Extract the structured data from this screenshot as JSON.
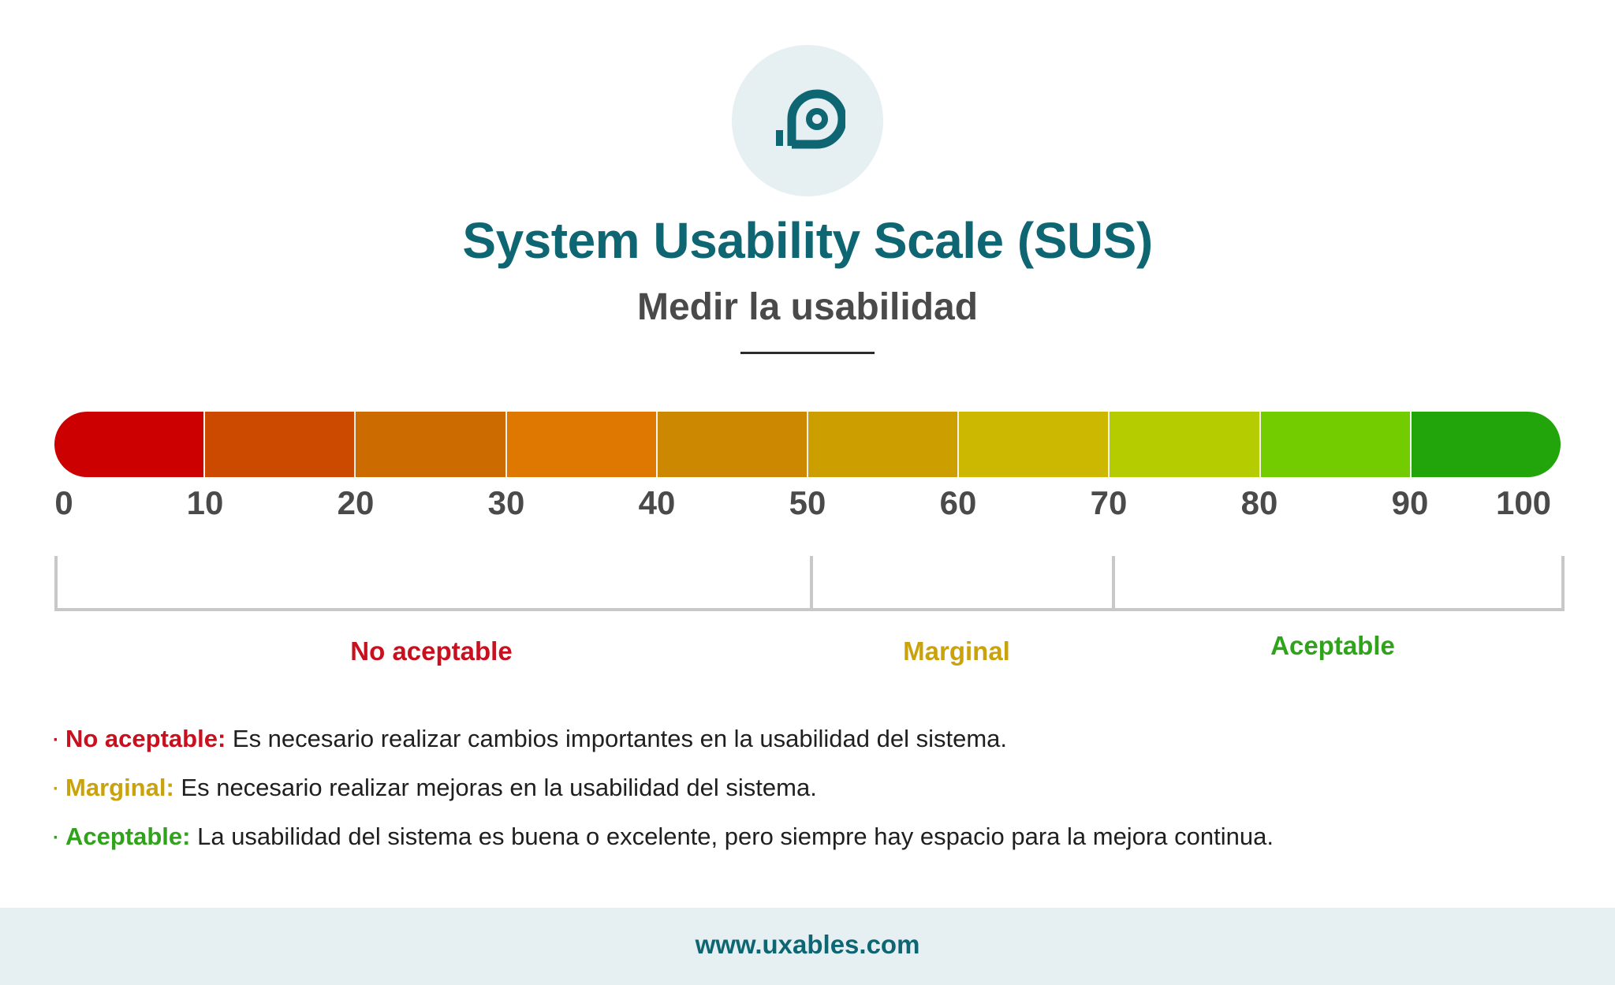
{
  "header": {
    "logo_icon": "scale-tape-icon",
    "title": "System Usability Scale (SUS)",
    "subtitle": "Medir la usabilidad"
  },
  "scale": {
    "segment_colors": [
      "#cc0000",
      "#cc4a00",
      "#cc6b00",
      "#de7800",
      "#cc8800",
      "#cc9e00",
      "#ccb800",
      "#b4cc00",
      "#72cc00",
      "#22a50a"
    ],
    "ticks": [
      "0",
      "10",
      "20",
      "30",
      "40",
      "50",
      "60",
      "70",
      "80",
      "90",
      "100"
    ]
  },
  "ranges": [
    {
      "label": "No aceptable",
      "from": 0,
      "to": 50,
      "color": "#c8101e"
    },
    {
      "label": "Marginal",
      "from": 50,
      "to": 70,
      "color": "#c9a20c"
    },
    {
      "label": "Aceptable",
      "from": 70,
      "to": 100,
      "color": "#2fa31a"
    }
  ],
  "legend": [
    {
      "bullet": "·",
      "term": "No aceptable:",
      "text": " Es necesario realizar cambios importantes en la usabilidad del sistema.",
      "color": "#c8101e"
    },
    {
      "bullet": "·",
      "term": "Marginal:",
      "text": " Es necesario realizar mejoras en la usabilidad del sistema.",
      "color": "#c9a20c"
    },
    {
      "bullet": "·",
      "term": "Aceptable:",
      "text": " La usabilidad del sistema es buena o excelente, pero siempre hay espacio para la mejora continua.",
      "color": "#2fa31a"
    }
  ],
  "footer": {
    "url": "www.uxables.com"
  }
}
